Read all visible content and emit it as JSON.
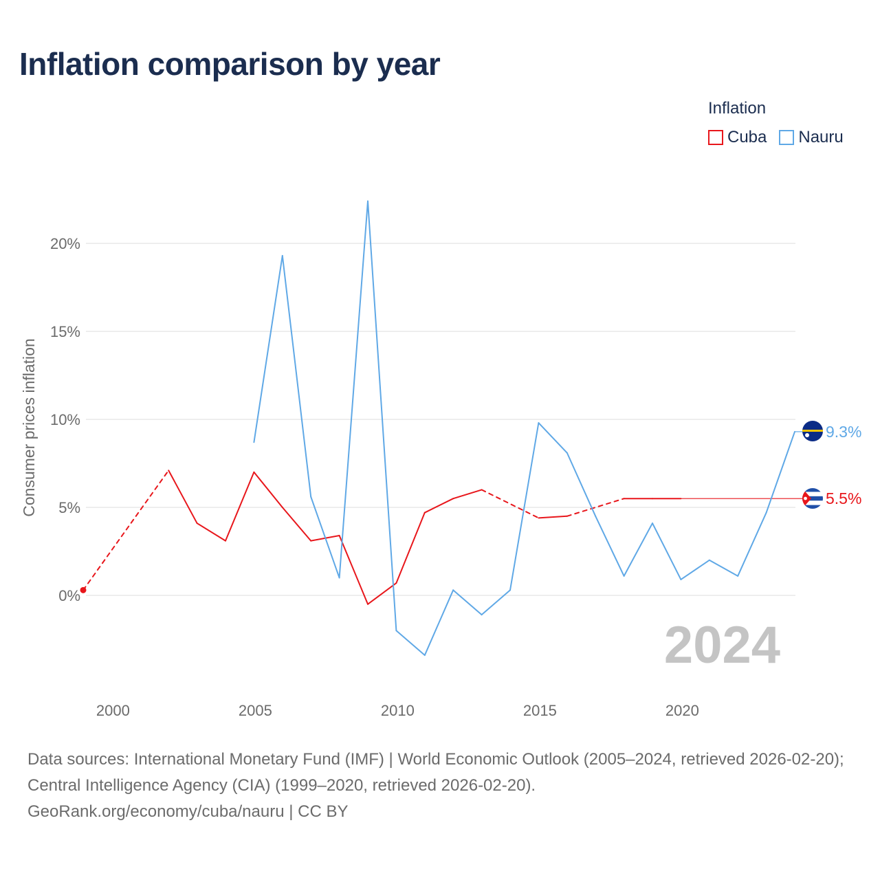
{
  "title": "Inflation comparison by year",
  "legend": {
    "title": "Inflation",
    "items": [
      {
        "label": "Cuba",
        "color": "#e8161b"
      },
      {
        "label": "Nauru",
        "color": "#5fa8e6"
      }
    ]
  },
  "sources": {
    "line1": "Data sources: International Monetary Fund (IMF) | World Economic Outlook (2005–2024, retrieved 2026-02-20); Central Intelligence Agency (CIA) (1999–2020, retrieved 2026-02-20).",
    "line2": "GeoRank.org/economy/cuba/nauru | CC BY"
  },
  "chart_data": {
    "type": "line",
    "title": "Inflation comparison by year",
    "xlabel": "",
    "ylabel": "Consumer prices inflation",
    "xlim": [
      1998.9,
      2024
    ],
    "ylim": [
      -4.5,
      23
    ],
    "xticks": [
      2000,
      2005,
      2010,
      2015,
      2020
    ],
    "xtick_labels": [
      "2000",
      "2005",
      "2010",
      "2015",
      "2020"
    ],
    "yticks": [
      0,
      5,
      10,
      15,
      20
    ],
    "ytick_labels": [
      "0%",
      "5%",
      "10%",
      "15%",
      "20%"
    ],
    "current_year": "2024",
    "series": [
      {
        "name": "Cuba",
        "color": "#e8161b",
        "end_label": "5.5%",
        "end_value": 5.5,
        "points": [
          {
            "x": 1999,
            "y": 0.3
          },
          {
            "x": 2002,
            "y": 7.1
          },
          {
            "x": 2003,
            "y": 4.1
          },
          {
            "x": 2004,
            "y": 3.1
          },
          {
            "x": 2005,
            "y": 7.0
          },
          {
            "x": 2006,
            "y": 5.0
          },
          {
            "x": 2007,
            "y": 3.1
          },
          {
            "x": 2008,
            "y": 3.4
          },
          {
            "x": 2009,
            "y": -0.5
          },
          {
            "x": 2010,
            "y": 0.7
          },
          {
            "x": 2011,
            "y": 4.7
          },
          {
            "x": 2012,
            "y": 5.5
          },
          {
            "x": 2013,
            "y": 6.0
          },
          {
            "x": 2015,
            "y": 4.4
          },
          {
            "x": 2016,
            "y": 4.5
          },
          {
            "x": 2018,
            "y": 5.5
          },
          {
            "x": 2019,
            "y": 5.5
          },
          {
            "x": 2020,
            "y": 5.5
          }
        ]
      },
      {
        "name": "Nauru",
        "color": "#5fa8e6",
        "end_label": "9.3%",
        "end_value": 9.3,
        "points": [
          {
            "x": 2005,
            "y": 8.7
          },
          {
            "x": 2006,
            "y": 19.3
          },
          {
            "x": 2007,
            "y": 5.6
          },
          {
            "x": 2008,
            "y": 1.0
          },
          {
            "x": 2009,
            "y": 22.4
          },
          {
            "x": 2010,
            "y": -2.0
          },
          {
            "x": 2011,
            "y": -3.4
          },
          {
            "x": 2012,
            "y": 0.3
          },
          {
            "x": 2013,
            "y": -1.1
          },
          {
            "x": 2014,
            "y": 0.3
          },
          {
            "x": 2015,
            "y": 9.8
          },
          {
            "x": 2016,
            "y": 8.1
          },
          {
            "x": 2017,
            "y": 4.5
          },
          {
            "x": 2018,
            "y": 1.1
          },
          {
            "x": 2019,
            "y": 4.1
          },
          {
            "x": 2020,
            "y": 0.9
          },
          {
            "x": 2021,
            "y": 2.0
          },
          {
            "x": 2022,
            "y": 1.1
          },
          {
            "x": 2023,
            "y": 4.7
          },
          {
            "x": 2024,
            "y": 9.3
          }
        ]
      }
    ]
  }
}
